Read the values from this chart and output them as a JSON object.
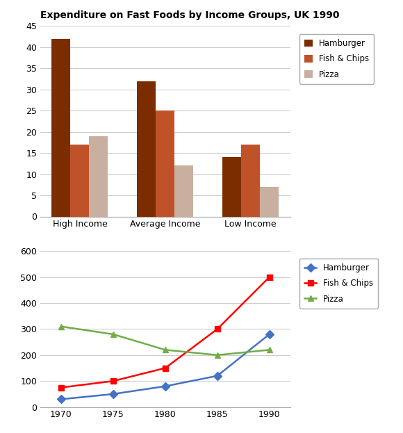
{
  "title": "Expenditure on Fast Foods by Income Groups, UK 1990",
  "bar_categories": [
    "High Income",
    "Average Income",
    "Low Income"
  ],
  "bar_series": {
    "Hamburger": [
      42,
      32,
      14
    ],
    "Fish & Chips": [
      17,
      25,
      17
    ],
    "Pizza": [
      19,
      12,
      7
    ]
  },
  "bar_colors": {
    "Hamburger": "#7B2D00",
    "Fish & Chips": "#C0522A",
    "Pizza": "#C8AFA0"
  },
  "bar_ylim": [
    0,
    45
  ],
  "bar_yticks": [
    0,
    5,
    10,
    15,
    20,
    25,
    30,
    35,
    40,
    45
  ],
  "line_years": [
    1970,
    1975,
    1980,
    1985,
    1990
  ],
  "line_series": {
    "Hamburger": [
      30,
      50,
      80,
      120,
      280
    ],
    "Fish & Chips": [
      75,
      100,
      150,
      300,
      500
    ],
    "Pizza": [
      310,
      280,
      220,
      200,
      220
    ]
  },
  "line_colors": {
    "Hamburger": "#4472C4",
    "Fish & Chips": "#FF0000",
    "Pizza": "#70AD47"
  },
  "line_markers": {
    "Hamburger": "D",
    "Fish & Chips": "s",
    "Pizza": "^"
  },
  "line_ylim": [
    0,
    600
  ],
  "line_yticks": [
    0,
    100,
    200,
    300,
    400,
    500,
    600
  ],
  "line_xticks": [
    1970,
    1975,
    1980,
    1985,
    1990
  ],
  "legend_labels": [
    "Hamburger",
    "Fish & Chips",
    "Pizza"
  ],
  "background_color": "#FFFFFF",
  "grid_color": "#CCCCCC"
}
